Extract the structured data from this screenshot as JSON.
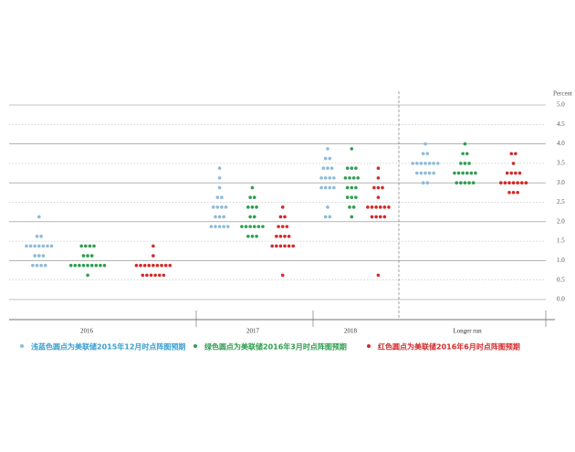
{
  "chart_data": {
    "type": "dot_plot",
    "y_label": "Percent",
    "categories": [
      "2016",
      "2017",
      "2018",
      "Longer run"
    ],
    "ylim": [
      0,
      5
    ],
    "yticks": [
      {
        "value": 0,
        "label": "0.0"
      },
      {
        "value": 0.5,
        "label": "0.5"
      },
      {
        "value": 1,
        "label": "1.0"
      },
      {
        "value": 1.5,
        "label": "1.5"
      },
      {
        "value": 2,
        "label": "2.0"
      },
      {
        "value": 2.5,
        "label": "2.5"
      },
      {
        "value": 3,
        "label": "3.0"
      },
      {
        "value": 3.5,
        "label": "3.5"
      },
      {
        "value": 4,
        "label": "4.0"
      },
      {
        "value": 4.5,
        "label": "4.5"
      },
      {
        "value": 5,
        "label": "5.0"
      }
    ],
    "grid": true,
    "series": [
      {
        "name": "浅蓝色圆点为美联储2015年12月时点阵图预期",
        "color": "#8dbbd8",
        "text_color": "#3a9fd0",
        "values": [
          [
            2.125,
            1.625,
            1.625,
            1.375,
            1.375,
            1.375,
            1.375,
            1.375,
            1.375,
            1.375,
            1.125,
            1.125,
            1.125,
            0.875,
            0.875,
            0.875,
            0.875
          ],
          [
            3.375,
            3.125,
            2.875,
            2.625,
            2.625,
            2.375,
            2.375,
            2.375,
            2.375,
            2.125,
            2.125,
            2.125,
            1.875,
            1.875,
            1.875,
            1.875,
            1.875
          ],
          [
            3.875,
            3.625,
            3.625,
            3.375,
            3.375,
            3.375,
            3.125,
            3.125,
            3.125,
            3.125,
            2.875,
            2.875,
            2.875,
            2.875,
            2.375,
            2.125,
            2.125
          ],
          [
            4.0,
            3.75,
            3.75,
            3.5,
            3.5,
            3.5,
            3.5,
            3.5,
            3.5,
            3.5,
            3.25,
            3.25,
            3.25,
            3.25,
            3.25,
            3.0,
            3.0
          ]
        ]
      },
      {
        "name": "绿色圆点为美联储2016年3月时点阵图预期",
        "color": "#2e9e4e",
        "text_color": "#2e9e4e",
        "values": [
          [
            1.375,
            1.375,
            1.375,
            1.375,
            1.125,
            1.125,
            1.125,
            0.875,
            0.875,
            0.875,
            0.875,
            0.875,
            0.875,
            0.875,
            0.875,
            0.875,
            0.625
          ],
          [
            2.875,
            2.625,
            2.625,
            2.375,
            2.375,
            2.375,
            2.125,
            2.125,
            1.875,
            1.875,
            1.875,
            1.875,
            1.875,
            1.875,
            1.625,
            1.625,
            1.625
          ],
          [
            3.875,
            3.375,
            3.375,
            3.375,
            3.125,
            3.125,
            3.125,
            3.125,
            2.875,
            2.875,
            2.875,
            2.625,
            2.625,
            2.625,
            2.375,
            2.375,
            2.125
          ],
          [
            4.0,
            3.75,
            3.75,
            3.5,
            3.5,
            3.5,
            3.25,
            3.25,
            3.25,
            3.25,
            3.25,
            3.25,
            3.0,
            3.0,
            3.0,
            3.0,
            3.0
          ]
        ]
      },
      {
        "name": "红色圆点为美联储2016年6月时点阵图预期",
        "color": "#d22a2a",
        "text_color": "#d22a2a",
        "values": [
          [
            1.375,
            1.125,
            0.875,
            0.875,
            0.875,
            0.875,
            0.875,
            0.875,
            0.875,
            0.875,
            0.875,
            0.625,
            0.625,
            0.625,
            0.625,
            0.625,
            0.625
          ],
          [
            2.375,
            2.125,
            2.125,
            1.875,
            1.875,
            1.875,
            1.625,
            1.625,
            1.625,
            1.625,
            1.375,
            1.375,
            1.375,
            1.375,
            1.375,
            1.375,
            0.625
          ],
          [
            3.375,
            3.125,
            2.875,
            2.875,
            2.875,
            2.625,
            2.375,
            2.375,
            2.375,
            2.375,
            2.375,
            2.375,
            2.125,
            2.125,
            2.125,
            2.125,
            0.625
          ],
          [
            3.75,
            3.75,
            3.5,
            3.25,
            3.25,
            3.25,
            3.25,
            3.0,
            3.0,
            3.0,
            3.0,
            3.0,
            3.0,
            3.0,
            2.75,
            2.75,
            2.75
          ]
        ]
      }
    ]
  }
}
